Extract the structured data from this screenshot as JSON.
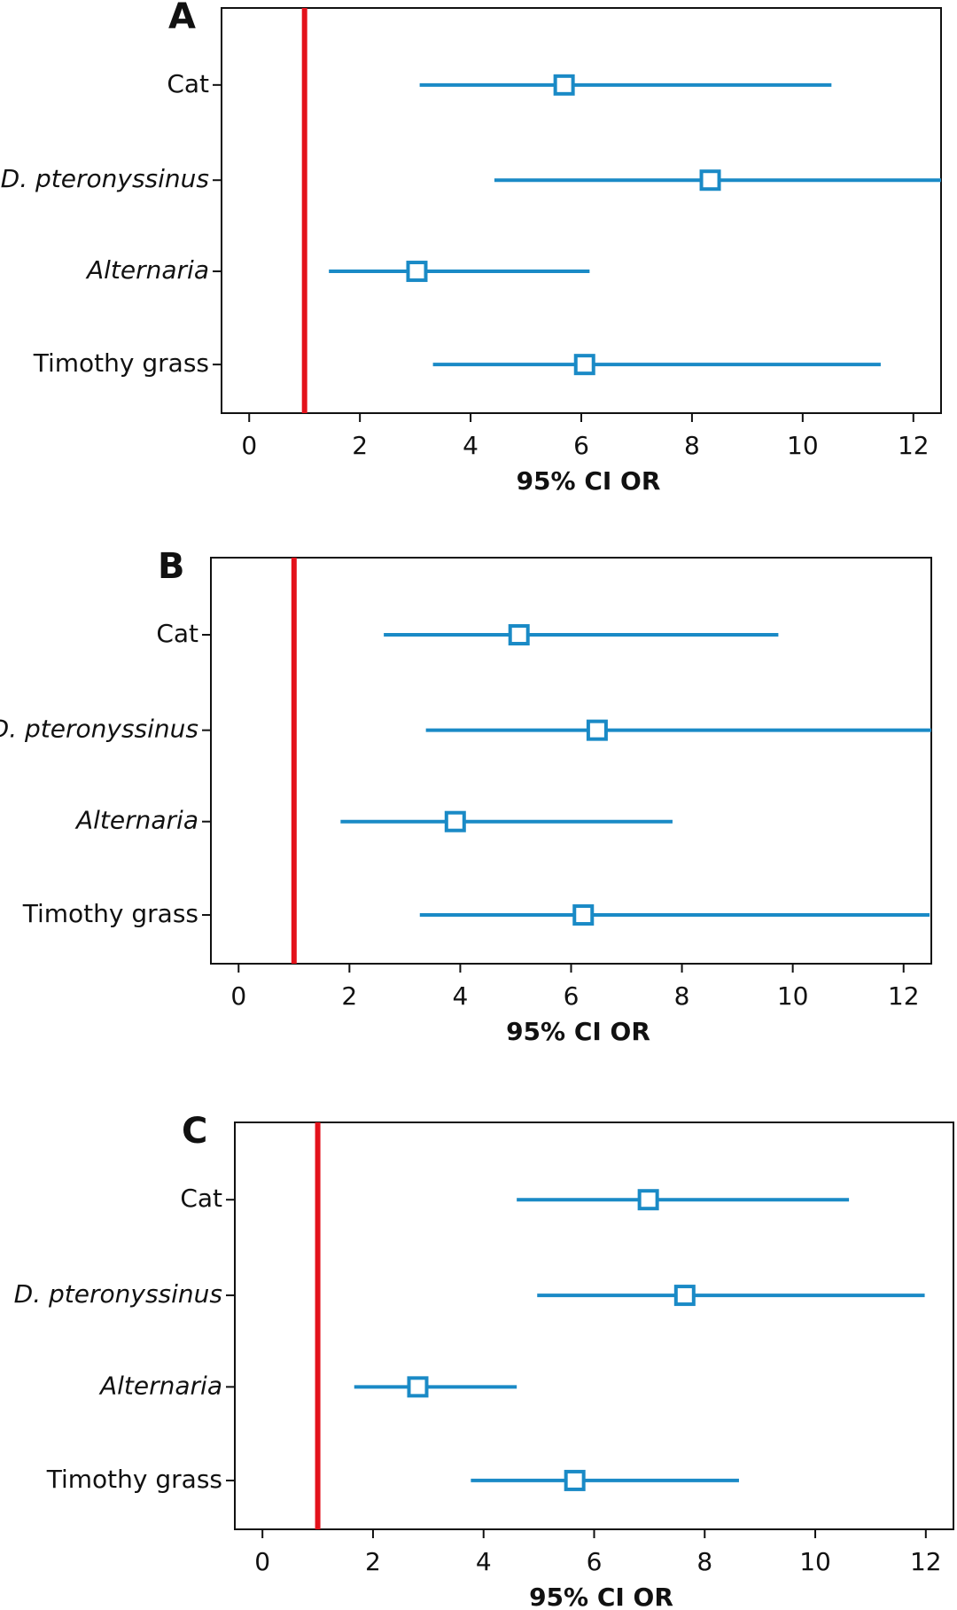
{
  "chart_data": [
    {
      "type": "forest",
      "title": "A",
      "xlabel": "95% CI OR",
      "categories": [
        "Cat",
        "D. pteronyssinus",
        "Alternaria",
        "Timothy grass"
      ],
      "label_styles": [
        "normal",
        "italic",
        "italic",
        "normal"
      ],
      "values": [
        5.69,
        8.33,
        3.03,
        6.06
      ],
      "lower": [
        3.08,
        4.43,
        1.44,
        3.32
      ],
      "upper": [
        10.52,
        12.5,
        6.15,
        11.41
      ],
      "color": "#1a8ac6",
      "reference_line": 1,
      "reference_color": "#e3121b",
      "xlim": [
        -0.5,
        12.5
      ],
      "xticks": [
        0,
        2,
        4,
        6,
        8,
        10,
        12
      ]
    },
    {
      "type": "forest",
      "title": "B",
      "xlabel": "95% CI OR",
      "categories": [
        "Cat",
        "D. pteronyssinus",
        "Alternaria",
        "Timothy grass"
      ],
      "label_styles": [
        "normal",
        "italic",
        "italic",
        "normal"
      ],
      "values": [
        5.06,
        6.47,
        3.91,
        6.22
      ],
      "lower": [
        2.62,
        3.38,
        1.84,
        3.27
      ],
      "upper": [
        9.74,
        12.5,
        7.83,
        12.47
      ],
      "color": "#1a8ac6",
      "reference_line": 1,
      "reference_color": "#e3121b",
      "xlim": [
        -0.5,
        12.5
      ],
      "xticks": [
        0,
        2,
        4,
        6,
        8,
        10,
        12
      ]
    },
    {
      "type": "forest",
      "title": "C",
      "xlabel": "95% CI OR",
      "categories": [
        "Cat",
        "D. pteronyssinus",
        "Alternaria",
        "Timothy grass"
      ],
      "label_styles": [
        "normal",
        "italic",
        "italic",
        "normal"
      ],
      "values": [
        6.98,
        7.64,
        2.81,
        5.65
      ],
      "lower": [
        4.6,
        4.97,
        1.66,
        3.77
      ],
      "upper": [
        10.61,
        11.98,
        4.6,
        8.62
      ],
      "color": "#1a8ac6",
      "reference_line": 1,
      "reference_color": "#e3121b",
      "xlim": [
        -0.5,
        12.5
      ],
      "xticks": [
        0,
        2,
        4,
        6,
        8,
        10,
        12
      ]
    }
  ]
}
